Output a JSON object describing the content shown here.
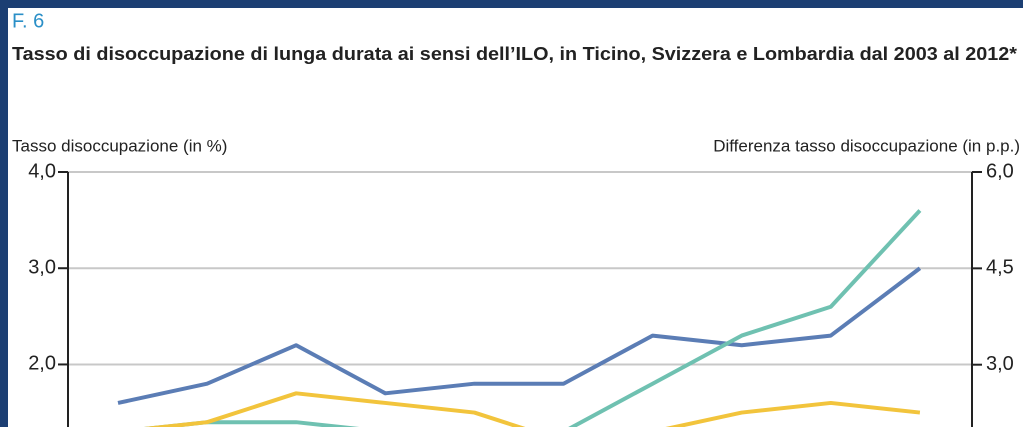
{
  "chart_data": {
    "type": "line",
    "figure_label": "F. 6",
    "title": "Tasso di disoccupazione di lunga durata ai sensi dell’ILO, in Ticino, Svizzera e Lombardia dal 2003 al 2012*",
    "ylabel": "Tasso disoccupazione (in %)",
    "y2label": "Differenza tasso disoccupazione (in p.p.)",
    "categories": [
      null,
      null,
      null,
      null,
      null,
      null,
      null,
      null,
      null,
      null
    ],
    "series": [
      {
        "color": "#5b7db5",
        "values": [
          1.6,
          1.8,
          2.2,
          1.7,
          1.8,
          1.8,
          2.3,
          2.2,
          2.3,
          3.0
        ]
      },
      {
        "color": "#6fc1b1",
        "values": [
          1.3,
          1.4,
          1.4,
          1.3,
          1.3,
          1.3,
          1.8,
          2.3,
          2.6,
          3.6
        ]
      },
      {
        "color": "#f2c43c",
        "values": [
          1.3,
          1.4,
          1.7,
          1.6,
          1.5,
          1.2,
          1.3,
          1.5,
          1.6,
          1.5
        ]
      }
    ],
    "ylim": [
      1.35,
      4.0
    ],
    "yticks": [
      {
        "value": 4.0,
        "label": "4,0"
      },
      {
        "value": 3.0,
        "label": "3,0"
      },
      {
        "value": 2.0,
        "label": "2,0"
      }
    ],
    "y2lim": [
      2.03,
      6.0
    ],
    "y2ticks": [
      {
        "value": 6.0,
        "label": "6,0"
      },
      {
        "value": 4.5,
        "label": "4,5"
      },
      {
        "value": 3.0,
        "label": "3,0"
      }
    ],
    "grid": true
  }
}
